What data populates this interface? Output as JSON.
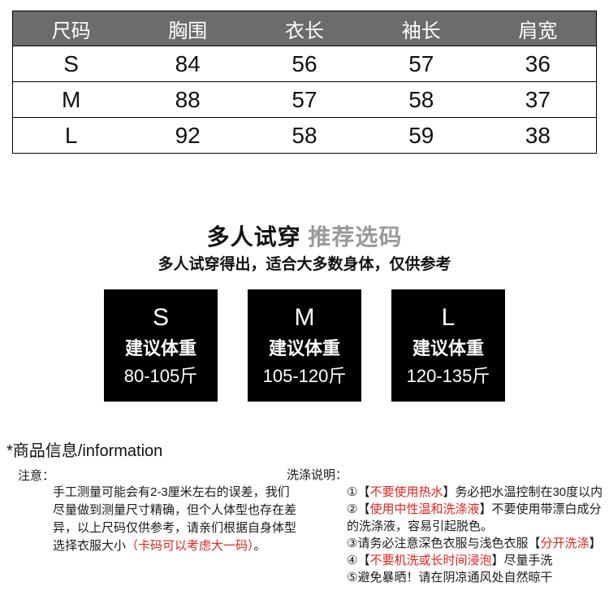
{
  "colors": {
    "accent_red": "#e2231a",
    "title_gray": "#9a9a9a",
    "table_header_bg": "#6c6c6c",
    "card_bg": "#000000"
  },
  "size_table": {
    "headers": [
      "尺码",
      "胸围",
      "衣长",
      "袖长",
      "肩宽"
    ],
    "rows": [
      [
        "S",
        "84",
        "56",
        "57",
        "36"
      ],
      [
        "M",
        "88",
        "57",
        "58",
        "37"
      ],
      [
        "L",
        "92",
        "58",
        "59",
        "38"
      ]
    ]
  },
  "fit_guide": {
    "title_black": "多人试穿",
    "title_gray": "推荐选码",
    "subtitle": "多人试穿得出，适合大多数身体，仅供参考",
    "cards": [
      {
        "size": "S",
        "label": "建议体重",
        "range": "80-105斤"
      },
      {
        "size": "M",
        "label": "建议体重",
        "range": "105-120斤"
      },
      {
        "size": "L",
        "label": "建议体重",
        "range": "120-135斤"
      }
    ]
  },
  "product_info": {
    "heading": "*商品信息/information",
    "notice_label": "注意：",
    "notice_lines": [
      [
        {
          "t": "手工测量可能会有2-3厘米左右的误差，我们"
        }
      ],
      [
        {
          "t": "尽量做到测量尺寸精确，但个人体型也存在差"
        }
      ],
      [
        {
          "t": "异，以上尺码仅供参考，请亲们根据自身体型"
        }
      ],
      [
        {
          "t": "选择衣服大小"
        },
        {
          "t": "（卡码可以考虑大一码）",
          "red": true
        },
        {
          "t": "。"
        }
      ]
    ],
    "wash_label": "洗涤说明：",
    "wash_lines": [
      [
        {
          "t": "①【"
        },
        {
          "t": "不要使用热水",
          "red": true
        },
        {
          "t": "】务必把水温控制在30度以内"
        }
      ],
      [
        {
          "t": "②【"
        },
        {
          "t": "使用中性温和洗涤液",
          "red": true
        },
        {
          "t": "】不要使用带漂白成分"
        }
      ],
      [
        {
          "t": "的洗涤液，容易引起脱色。"
        }
      ],
      [
        {
          "t": "③请务必注意深色衣服与浅色衣服【"
        },
        {
          "t": "分开洗涤",
          "red": true
        },
        {
          "t": "】"
        }
      ],
      [
        {
          "t": "④【"
        },
        {
          "t": "不要机洗或长时间浸泡",
          "red": true
        },
        {
          "t": "】尽量手洗"
        }
      ],
      [
        {
          "t": "⑤避免暴晒！请在阴凉通风处自然晾干"
        }
      ]
    ]
  }
}
